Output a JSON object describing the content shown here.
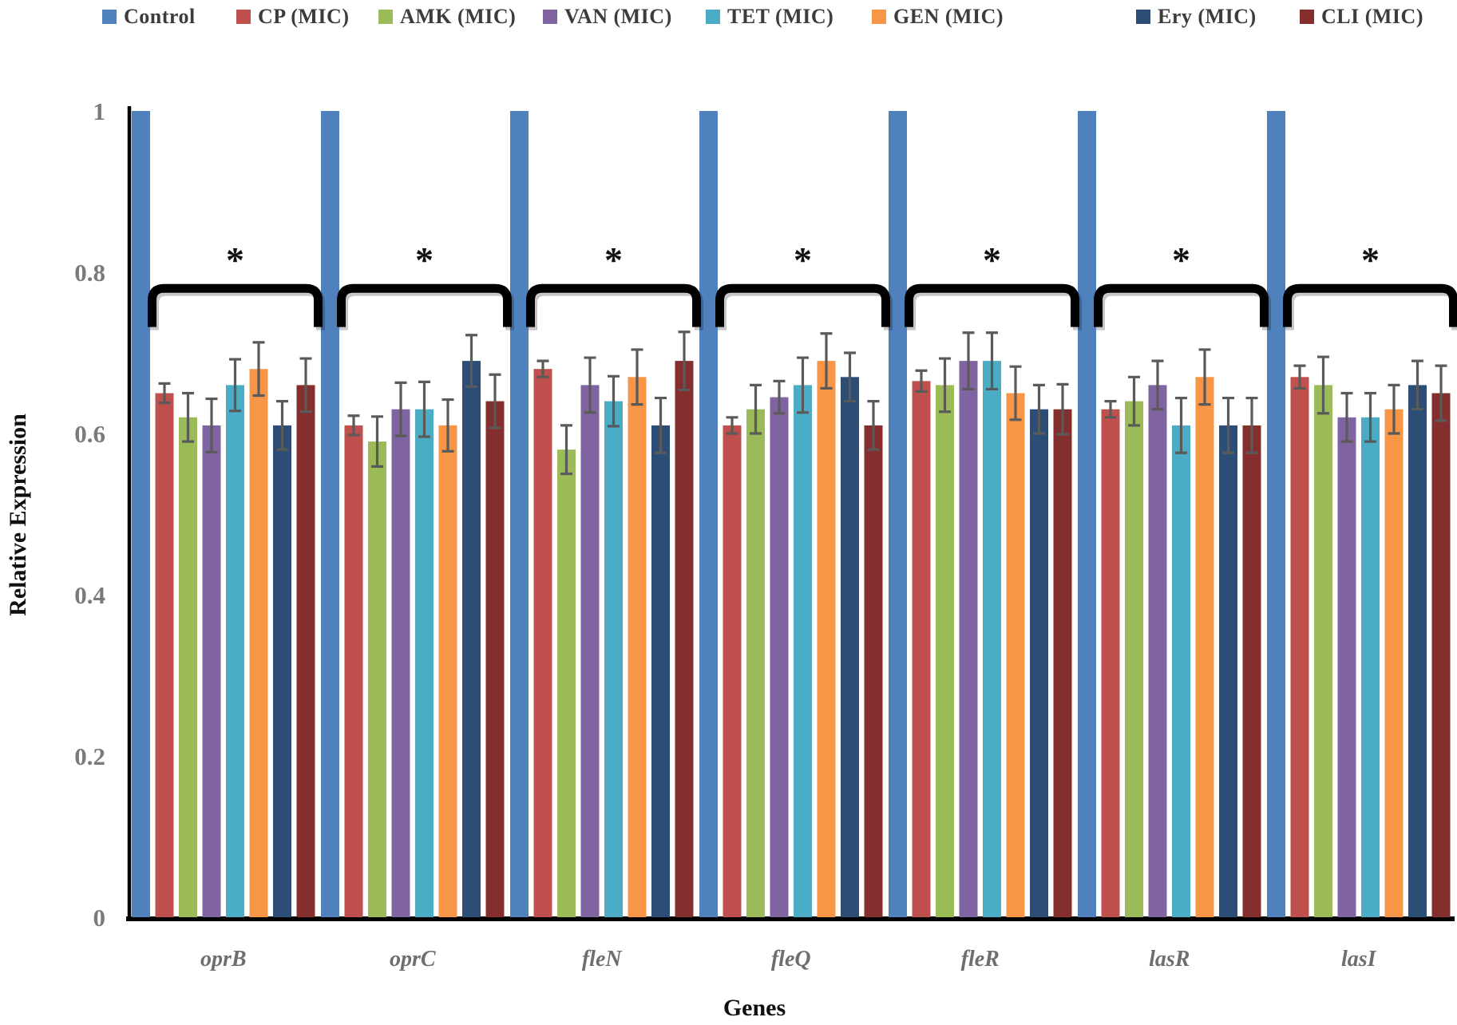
{
  "figure": {
    "y_axis_title": "Relative Expression",
    "x_axis_title": "Genes",
    "significance_marker": "*"
  },
  "chart_data": {
    "type": "bar",
    "title": "",
    "xlabel": "Genes",
    "ylabel": "Relative Expression",
    "ylim": [
      0,
      1
    ],
    "grid": false,
    "legend_position": "top",
    "categories": [
      "oprB",
      "oprC",
      "fleN",
      "fleQ",
      "fleR",
      "lasR",
      "lasI"
    ],
    "yticks": [
      {
        "v": 1.0,
        "label": "1"
      },
      {
        "v": 0.8,
        "label": "0.8"
      },
      {
        "v": 0.6,
        "label": "0.6"
      },
      {
        "v": 0.4,
        "label": "0.4"
      },
      {
        "v": 0.2,
        "label": "0.2"
      },
      {
        "v": 0.0,
        "label": "0"
      }
    ],
    "series": [
      {
        "name": "Control",
        "color": "#4F81BD",
        "values": [
          1,
          1,
          1,
          1,
          1,
          1,
          1
        ],
        "errors": [
          0,
          0,
          0,
          0,
          0,
          0,
          0
        ]
      },
      {
        "name": "CP (MIC)",
        "color": "#C0504D",
        "values": [
          0.65,
          0.61,
          0.68,
          0.61,
          0.665,
          0.63,
          0.67
        ],
        "errors": [
          0.012,
          0.012,
          0.01,
          0.01,
          0.013,
          0.01,
          0.014
        ]
      },
      {
        "name": "AMK (MIC)",
        "color": "#9BBB59",
        "values": [
          0.62,
          0.59,
          0.58,
          0.63,
          0.66,
          0.64,
          0.66
        ],
        "errors": [
          0.03,
          0.031,
          0.03,
          0.03,
          0.033,
          0.03,
          0.035
        ]
      },
      {
        "name": "VAN (MIC)",
        "color": "#8064A2",
        "values": [
          0.61,
          0.63,
          0.66,
          0.645,
          0.69,
          0.66,
          0.62
        ],
        "errors": [
          0.033,
          0.033,
          0.034,
          0.02,
          0.035,
          0.03,
          0.03
        ]
      },
      {
        "name": "TET (MIC)",
        "color": "#4BACC6",
        "values": [
          0.66,
          0.63,
          0.64,
          0.66,
          0.69,
          0.61,
          0.62
        ],
        "errors": [
          0.032,
          0.034,
          0.031,
          0.034,
          0.035,
          0.034,
          0.03
        ]
      },
      {
        "name": "GEN (MIC)",
        "color": "#F79646",
        "values": [
          0.68,
          0.61,
          0.67,
          0.69,
          0.65,
          0.67,
          0.63
        ],
        "errors": [
          0.033,
          0.032,
          0.034,
          0.034,
          0.033,
          0.034,
          0.03
        ]
      },
      {
        "name": "Ery (MIC)",
        "color": "#2C4D75",
        "values": [
          0.61,
          0.69,
          0.61,
          0.67,
          0.63,
          0.61,
          0.66
        ],
        "errors": [
          0.03,
          0.032,
          0.034,
          0.03,
          0.03,
          0.034,
          0.03
        ]
      },
      {
        "name": "CLI (MIC)",
        "color": "#842F2D",
        "values": [
          0.66,
          0.64,
          0.69,
          0.61,
          0.63,
          0.61,
          0.65
        ],
        "errors": [
          0.033,
          0.033,
          0.036,
          0.03,
          0.031,
          0.034,
          0.034
        ]
      }
    ],
    "annotations": {
      "marker": "*",
      "per_group_bracket": true,
      "bracket_spans_series": [
        "CP (MIC)",
        "CLI (MIC)"
      ],
      "groups_marked": [
        "oprB",
        "oprC",
        "fleN",
        "fleQ",
        "fleR",
        "lasR",
        "lasI"
      ]
    }
  }
}
